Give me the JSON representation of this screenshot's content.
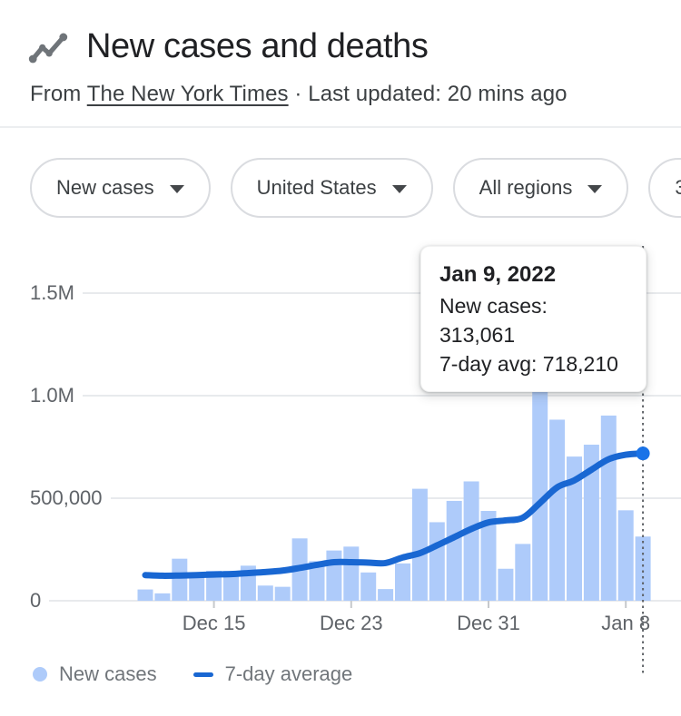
{
  "header": {
    "title": "New cases and deaths",
    "icon": "timeline-icon"
  },
  "source_line": {
    "prefix": "From ",
    "source": "The New York Times",
    "suffix": " · Last updated: 20 mins ago"
  },
  "filters": [
    {
      "label": "New cases"
    },
    {
      "label": "United States"
    },
    {
      "label": "All regions"
    },
    {
      "label": "3",
      "note": "clipped at right edge of viewport"
    }
  ],
  "tooltip": {
    "date": "Jan 9, 2022",
    "rows": [
      {
        "text": "New cases: 313,061"
      },
      {
        "text": "7-day avg: 718,210"
      }
    ]
  },
  "legend": [
    {
      "label": "New cases",
      "marker": "circle",
      "color": "#aecbfa"
    },
    {
      "label": "7-day average",
      "marker": "dash",
      "color": "#1967d2"
    }
  ],
  "colors": {
    "bar": "#aecbfa",
    "line": "#1967d2",
    "dot": "#1a73e8",
    "gridline": "#e8eaed",
    "axis_text": "#5f6368",
    "dotted_guide": "#5f6368"
  },
  "chart_data": {
    "type": "bar",
    "title": "New cases, United States",
    "xlabel": "",
    "ylabel": "",
    "ylim": [
      0,
      1600000
    ],
    "grid": "horizontal",
    "x": [
      "Dec 11",
      "Dec 12",
      "Dec 13",
      "Dec 14",
      "Dec 15",
      "Dec 16",
      "Dec 17",
      "Dec 18",
      "Dec 19",
      "Dec 20",
      "Dec 21",
      "Dec 22",
      "Dec 23",
      "Dec 24",
      "Dec 25",
      "Dec 26",
      "Dec 27",
      "Dec 28",
      "Dec 29",
      "Dec 30",
      "Dec 31",
      "Jan 1",
      "Jan 2",
      "Jan 3",
      "Jan 4",
      "Jan 5",
      "Jan 6",
      "Jan 7",
      "Jan 8",
      "Jan 9"
    ],
    "series": [
      {
        "name": "New cases",
        "type": "bar",
        "color": "#aecbfa",
        "values": [
          55000,
          36000,
          205000,
          131000,
          146000,
          146000,
          171000,
          74000,
          68000,
          304000,
          193000,
          245000,
          264000,
          138000,
          57000,
          182000,
          546000,
          383000,
          487000,
          582000,
          438000,
          156000,
          277000,
          1019000,
          883000,
          703000,
          761000,
          903000,
          441000,
          313061
        ]
      },
      {
        "name": "7-day average",
        "type": "line",
        "color": "#1967d2",
        "values": [
          125000,
          122000,
          123000,
          125000,
          128000,
          130000,
          135000,
          140000,
          147000,
          160000,
          175000,
          188000,
          188000,
          186000,
          184000,
          211000,
          232000,
          270000,
          310000,
          350000,
          382000,
          392000,
          405000,
          477000,
          553000,
          587000,
          639000,
          690000,
          712000,
          718210
        ]
      }
    ],
    "y_axis": {
      "ticks": [
        {
          "label": "1.5M",
          "value": 1500000
        },
        {
          "label": "1.0M",
          "value": 1000000
        },
        {
          "label": "500,000",
          "value": 500000
        },
        {
          "label": "0",
          "value": 0
        }
      ]
    },
    "x_axis": {
      "ticks": [
        {
          "label": "Dec 15",
          "index": 4
        },
        {
          "label": "Dec 23",
          "index": 12
        },
        {
          "label": "Dec 31",
          "index": 20
        },
        {
          "label": "Jan 8",
          "index": 28
        }
      ]
    },
    "highlight": {
      "date": "Jan 9, 2022",
      "index": 29,
      "new_cases": 313061,
      "seven_day_avg": 718210
    },
    "legend_position": "bottom"
  }
}
